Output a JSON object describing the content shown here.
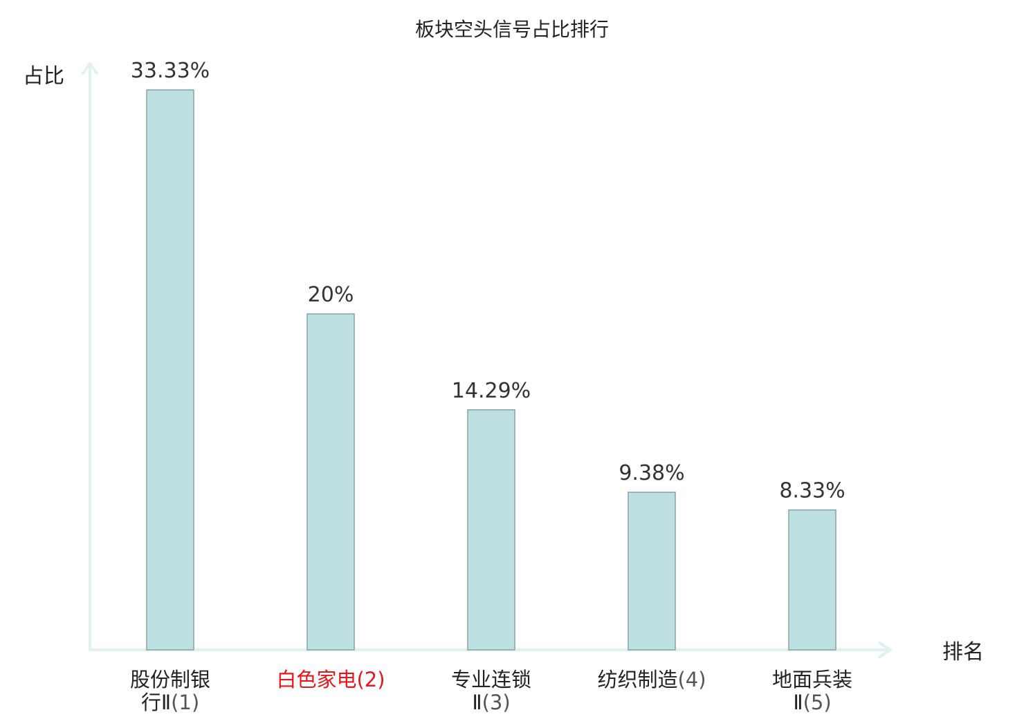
{
  "chart_data": {
    "type": "bar",
    "title": "板块空头信号占比排行",
    "ylabel": "占比",
    "xlabel": "排名",
    "categories": [
      {
        "name_lines": [
          "股份制银",
          "行Ⅱ"
        ],
        "rank": "(1)"
      },
      {
        "name_lines": [
          "白色家电"
        ],
        "rank": "(2)"
      },
      {
        "name_lines": [
          "专业连锁",
          "Ⅱ"
        ],
        "rank": "(3)"
      },
      {
        "name_lines": [
          "纺织制造"
        ],
        "rank": "(4)"
      },
      {
        "name_lines": [
          "地面兵装",
          "Ⅱ"
        ],
        "rank": "(5)"
      }
    ],
    "values": [
      33.33,
      20,
      14.29,
      9.38,
      8.33
    ],
    "value_labels": [
      "33.33%",
      "20%",
      "14.29%",
      "9.38%",
      "8.33%"
    ],
    "highlight_index": 1,
    "ylim": [
      0,
      35
    ],
    "grid": false,
    "colors": {
      "bar_fill": "#bde0e2",
      "bar_stroke": "#86a3a5",
      "axis": "#dff2ee",
      "highlight": "#e8161b"
    }
  }
}
